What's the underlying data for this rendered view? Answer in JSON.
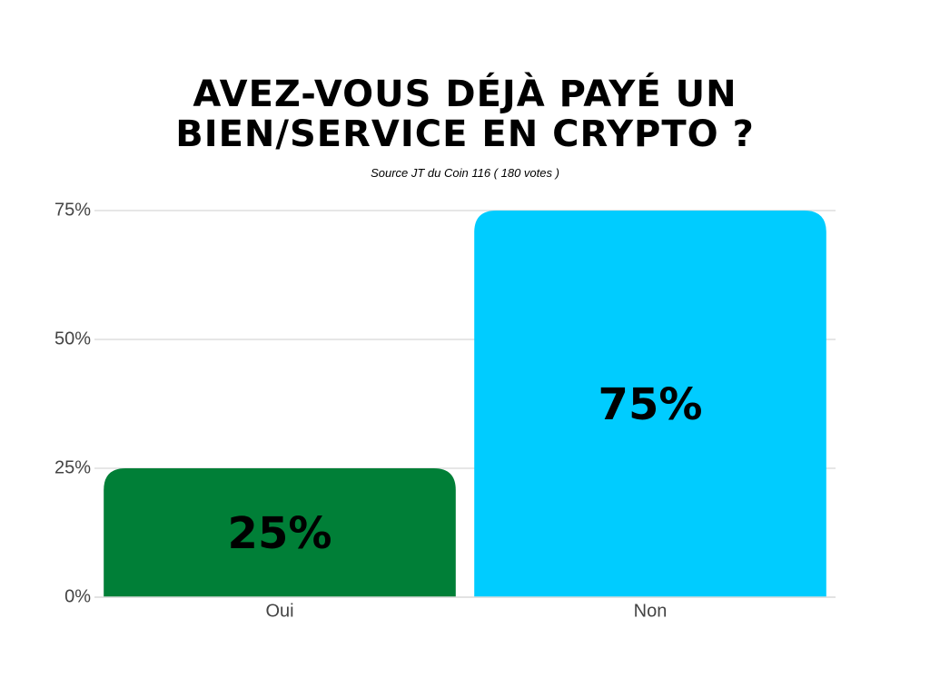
{
  "chart_data": {
    "type": "bar",
    "title": "AVEZ-VOUS DÉJÀ PAYÉ UN BIEN/SERVICE EN CRYPTO ?",
    "subtitle": "Source JT du Coin 116 ( 180 votes )",
    "categories": [
      "Oui",
      "Non"
    ],
    "values": [
      25,
      75
    ],
    "value_labels": [
      "25%",
      "75%"
    ],
    "colors": [
      "#007f37",
      "#00ccff"
    ],
    "ylim": [
      0,
      75
    ],
    "yticks": [
      {
        "value": 0,
        "label": "0%"
      },
      {
        "value": 25,
        "label": "25%"
      },
      {
        "value": 50,
        "label": "50%"
      },
      {
        "value": 75,
        "label": "75%"
      }
    ],
    "grid": true
  }
}
